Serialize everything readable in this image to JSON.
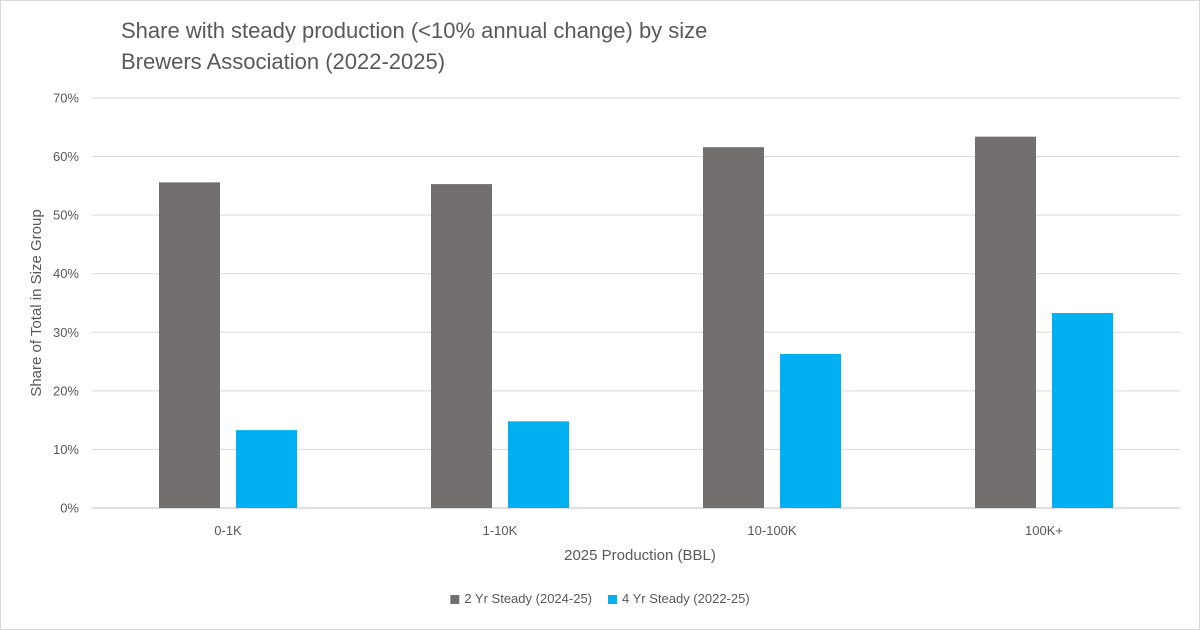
{
  "chart_data": {
    "type": "bar",
    "title": "Share with steady production (<10% annual change) by size",
    "subtitle": "Brewers Association (2022-2025)",
    "xlabel": "2025 Production (BBL)",
    "ylabel": "Share of Total in Size Group",
    "categories": [
      "0-1K",
      "1-10K",
      "10-100K",
      "100K+"
    ],
    "series": [
      {
        "name": "2 Yr Steady (2024-25)",
        "color": "#736f6e",
        "values": [
          55.6,
          55.3,
          61.6,
          63.4
        ]
      },
      {
        "name": "4 Yr Steady (2022-25)",
        "color": "#00b0f0",
        "values": [
          13.3,
          14.8,
          26.3,
          33.3
        ]
      }
    ],
    "ylim": [
      0,
      70
    ],
    "yticks": [
      "0%",
      "10%",
      "20%",
      "30%",
      "40%",
      "50%",
      "60%",
      "70%"
    ],
    "grid": true,
    "legend": "bottom"
  }
}
